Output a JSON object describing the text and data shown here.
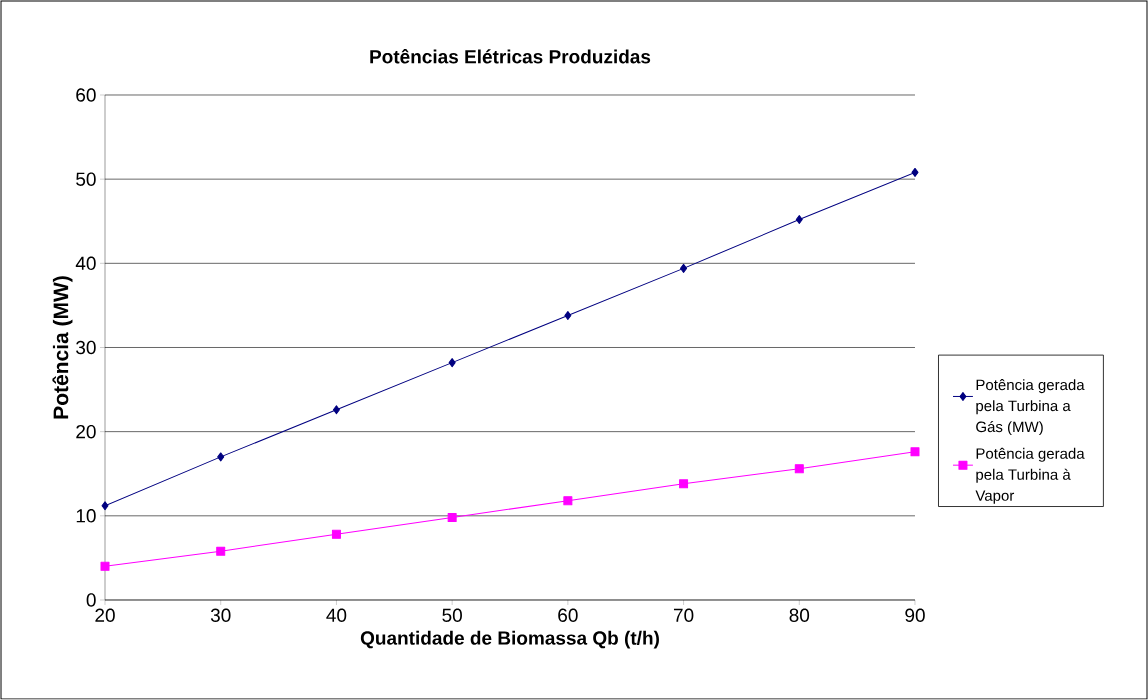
{
  "chart_data": {
    "type": "line",
    "title": "Potências Elétricas Produzidas",
    "xlabel": "Quantidade de Biomassa Qb (t/h)",
    "ylabel": "Potência (MW)",
    "x": [
      20,
      30,
      40,
      50,
      60,
      70,
      80,
      90
    ],
    "series": [
      {
        "name": "Potência gerada pela Turbina a Gás (MW)",
        "color": "#000080",
        "marker": "diamond",
        "values": [
          11.2,
          17,
          22.6,
          28.2,
          33.8,
          39.4,
          45.2,
          50.8
        ]
      },
      {
        "name": "Potência gerada pela Turbina à Vapor",
        "color": "#ff00ff",
        "marker": "square",
        "values": [
          4,
          5.8,
          7.8,
          9.8,
          11.8,
          13.8,
          15.6,
          17.6
        ]
      }
    ],
    "xlim": [
      20,
      90
    ],
    "ylim": [
      0,
      60
    ],
    "xticks": [
      20,
      30,
      40,
      50,
      60,
      70,
      80,
      90
    ],
    "yticks": [
      0,
      10,
      20,
      30,
      40,
      50,
      60
    ],
    "grid": "y",
    "legend": "right",
    "line_style": "solid"
  }
}
